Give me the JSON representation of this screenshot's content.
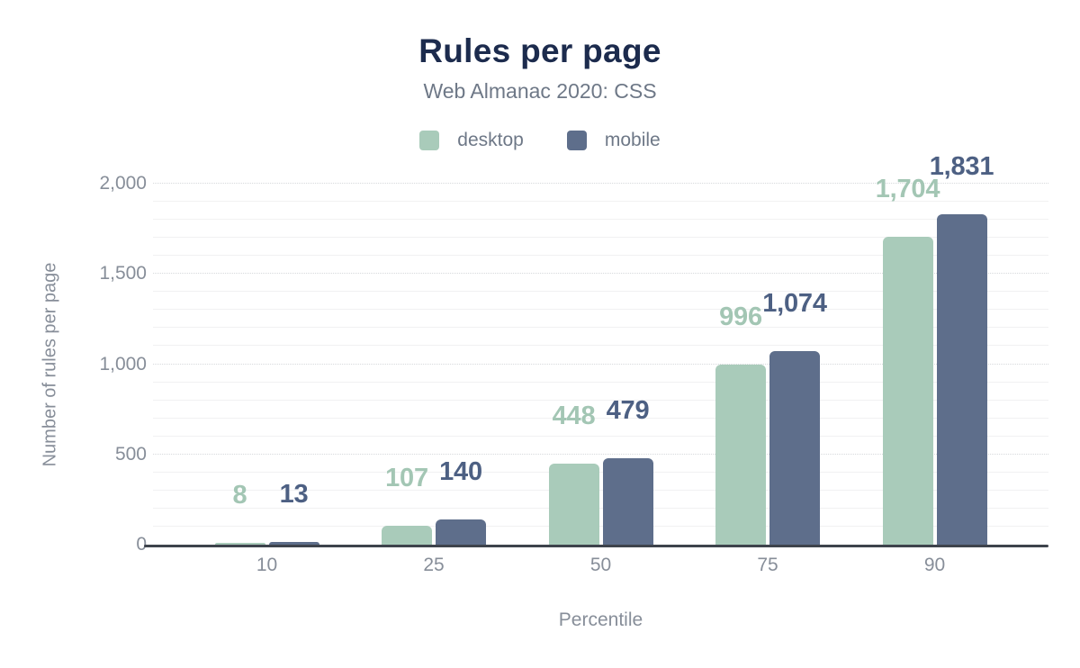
{
  "chart_data": {
    "type": "bar",
    "title": "Rules per page",
    "subtitle": "Web Almanac 2020: CSS",
    "xlabel": "Percentile",
    "ylabel": "Number of rules per page",
    "categories": [
      "10",
      "25",
      "50",
      "75",
      "90"
    ],
    "series": [
      {
        "name": "desktop",
        "color": "#a9cbba",
        "label_color": "#a3c6b4",
        "values": [
          8,
          107,
          448,
          996,
          1704
        ],
        "value_labels": [
          "8",
          "107",
          "448",
          "996",
          "1,704"
        ]
      },
      {
        "name": "mobile",
        "color": "#5e6e8b",
        "label_color": "#4d6083",
        "values": [
          13,
          140,
          479,
          1074,
          1831
        ],
        "value_labels": [
          "13",
          "140",
          "479",
          "1,074",
          "1,831"
        ]
      }
    ],
    "ylim": [
      0,
      2000
    ],
    "yticks": [
      0,
      500,
      1000,
      1500,
      2000
    ],
    "ytick_labels": [
      "0",
      "500",
      "1,000",
      "1,500",
      "2,000"
    ],
    "grid": {
      "minor_step": 100,
      "major_step": 500,
      "gridlines_on": true
    },
    "legend_position": "top"
  },
  "colors": {
    "title": "#1c2b4d",
    "subtitle": "#6e7887",
    "legend_text": "#6e7887",
    "tick_text": "#878e99",
    "axis_title_text": "#878e99",
    "axis_line": "#3e434c",
    "background": "#ffffff"
  }
}
